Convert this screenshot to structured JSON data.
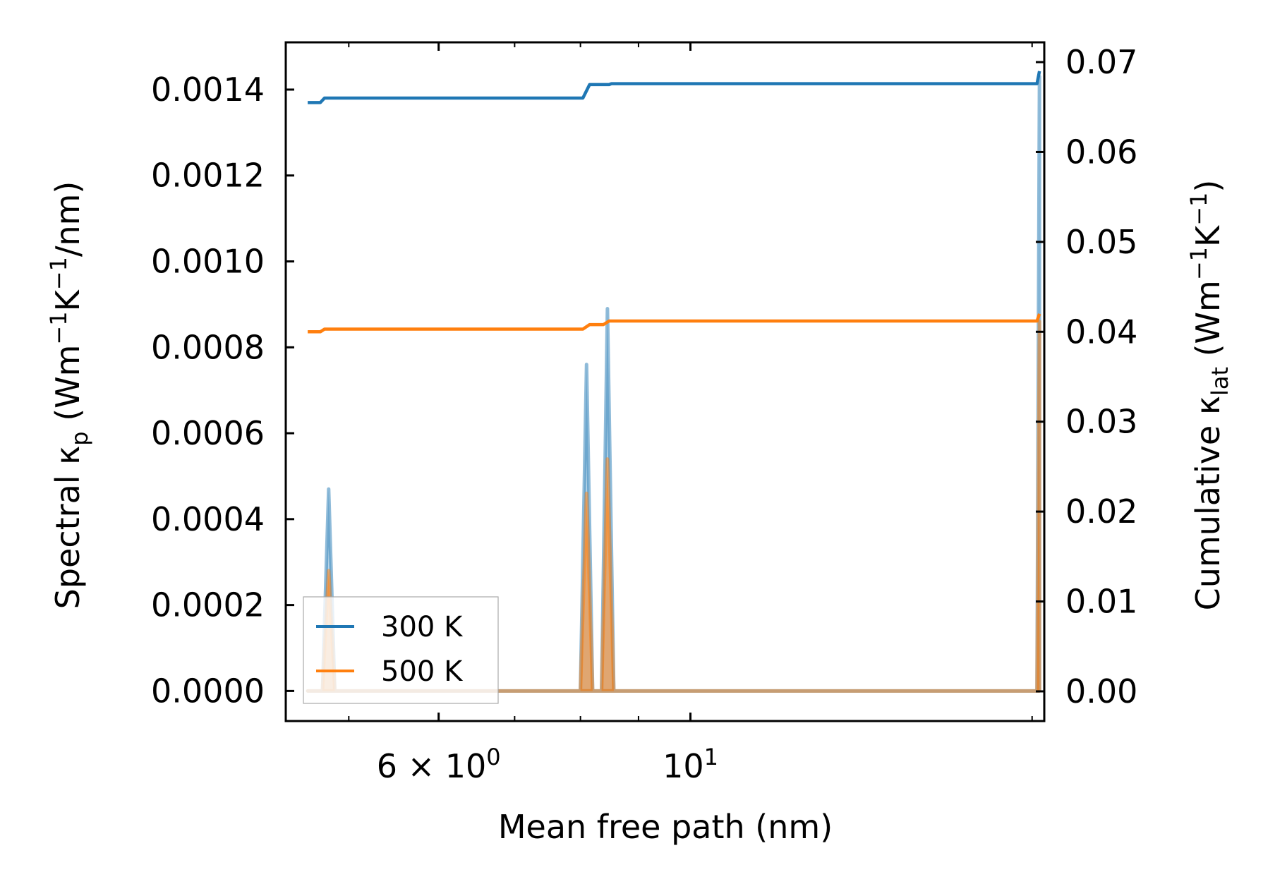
{
  "chart_data": {
    "type": "line",
    "xscale": "log",
    "xlim": [
      4.4,
      20.5
    ],
    "x_ticks": [
      {
        "value": 6,
        "base": "6 × 10",
        "exp": "0"
      },
      {
        "value": 10,
        "base": "10",
        "exp": "1"
      }
    ],
    "x_minor_ticks": [
      5,
      7,
      8,
      9,
      20
    ],
    "xlabel": "Mean free path (nm)",
    "left_axis": {
      "ylim": [
        -7e-05,
        0.00151
      ],
      "ticks": [
        0.0,
        0.0002,
        0.0004,
        0.0006,
        0.0008,
        0.001,
        0.0012,
        0.0014
      ],
      "tick_labels": [
        "0.0000",
        "0.0002",
        "0.0004",
        "0.0006",
        "0.0008",
        "0.0010",
        "0.0012",
        "0.0014"
      ],
      "label": {
        "pre": "Spectral κ",
        "sub": "p",
        "mid1": " (Wm",
        "sup1": "−1",
        "mid2": "K",
        "sup2": "−1",
        "post": "/nm)"
      }
    },
    "right_axis": {
      "ylim": [
        -0.0033,
        0.0722
      ],
      "ticks": [
        0.0,
        0.01,
        0.02,
        0.03,
        0.04,
        0.05,
        0.06,
        0.07
      ],
      "tick_labels": [
        "0.00",
        "0.01",
        "0.02",
        "0.03",
        "0.04",
        "0.05",
        "0.06",
        "0.07"
      ],
      "label": {
        "pre": "Cumulative κ",
        "sub": "lat",
        "mid1": " (Wm",
        "sup1": "−1",
        "mid2": "K",
        "sup2": "−1",
        "post": ")"
      }
    },
    "legend": {
      "location": "lower-left",
      "entries": [
        "300 K",
        "500 K"
      ]
    },
    "series": [
      {
        "name": "300 K",
        "color": "#1f77b4",
        "spectral_points": [
          [
            4.6,
            0.0
          ],
          [
            4.74,
            0.0
          ],
          [
            4.8,
            0.00047
          ],
          [
            4.86,
            0.0
          ],
          [
            8.0,
            0.0
          ],
          [
            8.1,
            0.00076
          ],
          [
            8.2,
            0.0
          ],
          [
            8.35,
            0.0
          ],
          [
            8.45,
            0.00089
          ],
          [
            8.56,
            0.0
          ],
          [
            20.2,
            0.0
          ],
          [
            20.3,
            0.00143
          ]
        ],
        "cumulative_points": [
          [
            4.6,
            0.0655
          ],
          [
            4.72,
            0.0655
          ],
          [
            4.76,
            0.066
          ],
          [
            8.04,
            0.066
          ],
          [
            8.15,
            0.0675
          ],
          [
            8.38,
            0.0675
          ],
          [
            8.48,
            0.0675
          ],
          [
            8.52,
            0.0676
          ],
          [
            20.2,
            0.0676
          ],
          [
            20.3,
            0.069
          ]
        ]
      },
      {
        "name": "500 K",
        "color": "#ff7f0e",
        "spectral_points": [
          [
            4.6,
            0.0
          ],
          [
            4.74,
            0.0
          ],
          [
            4.8,
            0.00028
          ],
          [
            4.86,
            0.0
          ],
          [
            8.0,
            0.0
          ],
          [
            8.1,
            0.00046
          ],
          [
            8.2,
            0.0
          ],
          [
            8.35,
            0.0
          ],
          [
            8.45,
            0.00054
          ],
          [
            8.56,
            0.0
          ],
          [
            20.2,
            0.0
          ],
          [
            20.3,
            0.00086
          ]
        ],
        "cumulative_points": [
          [
            4.6,
            0.04
          ],
          [
            4.72,
            0.04
          ],
          [
            4.76,
            0.0403
          ],
          [
            8.04,
            0.0403
          ],
          [
            8.15,
            0.0408
          ],
          [
            8.38,
            0.0408
          ],
          [
            8.48,
            0.0412
          ],
          [
            20.2,
            0.0412
          ],
          [
            20.3,
            0.042
          ]
        ]
      }
    ]
  }
}
